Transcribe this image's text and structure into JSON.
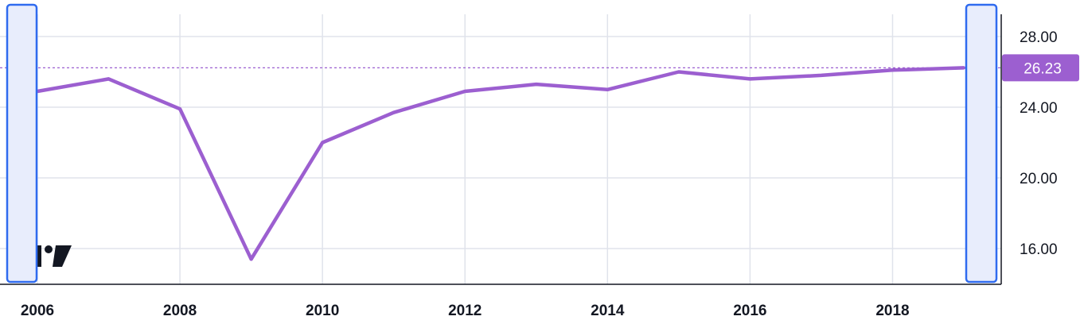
{
  "chart_data": {
    "type": "line",
    "x": [
      2006,
      2007,
      2008,
      2009,
      2010,
      2011,
      2012,
      2013,
      2014,
      2015,
      2016,
      2017,
      2018,
      2019
    ],
    "series": [
      {
        "values": [
          24.9,
          25.6,
          23.9,
          15.4,
          22.0,
          23.7,
          24.9,
          25.3,
          25.0,
          26.0,
          25.6,
          25.8,
          26.1,
          26.23
        ]
      }
    ],
    "x_ticks": [
      2006,
      2008,
      2010,
      2012,
      2014,
      2016,
      2018
    ],
    "y_ticks": [
      "16.00",
      "20.00",
      "24.00",
      "28.00"
    ],
    "y_tick_values": [
      16,
      20,
      24,
      28
    ],
    "last_value_label": "26.23",
    "last_value": 26.23,
    "xlim": [
      2006,
      2019
    ],
    "ylim": [
      15.4,
      26.23
    ],
    "grid": true,
    "title": "",
    "xlabel": "",
    "ylabel": "",
    "colors": {
      "line": "#9c5fd0",
      "label_bg": "#9c5fd0",
      "grid": "#e0e3eb",
      "handle_border": "#2f6bef",
      "handle_fill": "#e8edfc",
      "axis": "#131722"
    },
    "icons": {
      "logo": "tradingview-logo-icon"
    }
  }
}
